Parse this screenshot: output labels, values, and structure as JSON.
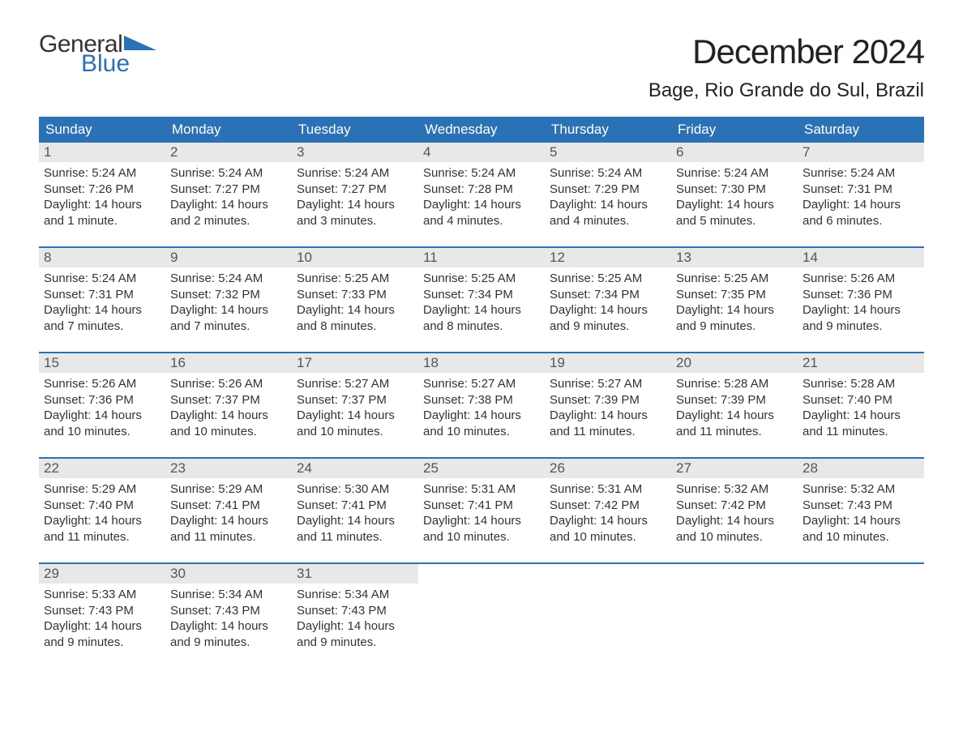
{
  "logo": {
    "general": "General",
    "blue": "Blue",
    "triangle_color": "#2a72b5"
  },
  "title": "December 2024",
  "location": "Bage, Rio Grande do Sul, Brazil",
  "colors": {
    "header_bg": "#2a72b5",
    "header_text": "#ffffff",
    "daynum_bg": "#e8e8e8",
    "daynum_text": "#555555",
    "body_text": "#333333",
    "week_border": "#2a72b5",
    "page_bg": "#ffffff"
  },
  "typography": {
    "title_fontsize": 42,
    "location_fontsize": 24,
    "dow_fontsize": 17,
    "daynum_fontsize": 17,
    "body_fontsize": 15
  },
  "days_of_week": [
    "Sunday",
    "Monday",
    "Tuesday",
    "Wednesday",
    "Thursday",
    "Friday",
    "Saturday"
  ],
  "weeks": [
    [
      {
        "n": "1",
        "sunrise": "Sunrise: 5:24 AM",
        "sunset": "Sunset: 7:26 PM",
        "day1": "Daylight: 14 hours",
        "day2": "and 1 minute."
      },
      {
        "n": "2",
        "sunrise": "Sunrise: 5:24 AM",
        "sunset": "Sunset: 7:27 PM",
        "day1": "Daylight: 14 hours",
        "day2": "and 2 minutes."
      },
      {
        "n": "3",
        "sunrise": "Sunrise: 5:24 AM",
        "sunset": "Sunset: 7:27 PM",
        "day1": "Daylight: 14 hours",
        "day2": "and 3 minutes."
      },
      {
        "n": "4",
        "sunrise": "Sunrise: 5:24 AM",
        "sunset": "Sunset: 7:28 PM",
        "day1": "Daylight: 14 hours",
        "day2": "and 4 minutes."
      },
      {
        "n": "5",
        "sunrise": "Sunrise: 5:24 AM",
        "sunset": "Sunset: 7:29 PM",
        "day1": "Daylight: 14 hours",
        "day2": "and 4 minutes."
      },
      {
        "n": "6",
        "sunrise": "Sunrise: 5:24 AM",
        "sunset": "Sunset: 7:30 PM",
        "day1": "Daylight: 14 hours",
        "day2": "and 5 minutes."
      },
      {
        "n": "7",
        "sunrise": "Sunrise: 5:24 AM",
        "sunset": "Sunset: 7:31 PM",
        "day1": "Daylight: 14 hours",
        "day2": "and 6 minutes."
      }
    ],
    [
      {
        "n": "8",
        "sunrise": "Sunrise: 5:24 AM",
        "sunset": "Sunset: 7:31 PM",
        "day1": "Daylight: 14 hours",
        "day2": "and 7 minutes."
      },
      {
        "n": "9",
        "sunrise": "Sunrise: 5:24 AM",
        "sunset": "Sunset: 7:32 PM",
        "day1": "Daylight: 14 hours",
        "day2": "and 7 minutes."
      },
      {
        "n": "10",
        "sunrise": "Sunrise: 5:25 AM",
        "sunset": "Sunset: 7:33 PM",
        "day1": "Daylight: 14 hours",
        "day2": "and 8 minutes."
      },
      {
        "n": "11",
        "sunrise": "Sunrise: 5:25 AM",
        "sunset": "Sunset: 7:34 PM",
        "day1": "Daylight: 14 hours",
        "day2": "and 8 minutes."
      },
      {
        "n": "12",
        "sunrise": "Sunrise: 5:25 AM",
        "sunset": "Sunset: 7:34 PM",
        "day1": "Daylight: 14 hours",
        "day2": "and 9 minutes."
      },
      {
        "n": "13",
        "sunrise": "Sunrise: 5:25 AM",
        "sunset": "Sunset: 7:35 PM",
        "day1": "Daylight: 14 hours",
        "day2": "and 9 minutes."
      },
      {
        "n": "14",
        "sunrise": "Sunrise: 5:26 AM",
        "sunset": "Sunset: 7:36 PM",
        "day1": "Daylight: 14 hours",
        "day2": "and 9 minutes."
      }
    ],
    [
      {
        "n": "15",
        "sunrise": "Sunrise: 5:26 AM",
        "sunset": "Sunset: 7:36 PM",
        "day1": "Daylight: 14 hours",
        "day2": "and 10 minutes."
      },
      {
        "n": "16",
        "sunrise": "Sunrise: 5:26 AM",
        "sunset": "Sunset: 7:37 PM",
        "day1": "Daylight: 14 hours",
        "day2": "and 10 minutes."
      },
      {
        "n": "17",
        "sunrise": "Sunrise: 5:27 AM",
        "sunset": "Sunset: 7:37 PM",
        "day1": "Daylight: 14 hours",
        "day2": "and 10 minutes."
      },
      {
        "n": "18",
        "sunrise": "Sunrise: 5:27 AM",
        "sunset": "Sunset: 7:38 PM",
        "day1": "Daylight: 14 hours",
        "day2": "and 10 minutes."
      },
      {
        "n": "19",
        "sunrise": "Sunrise: 5:27 AM",
        "sunset": "Sunset: 7:39 PM",
        "day1": "Daylight: 14 hours",
        "day2": "and 11 minutes."
      },
      {
        "n": "20",
        "sunrise": "Sunrise: 5:28 AM",
        "sunset": "Sunset: 7:39 PM",
        "day1": "Daylight: 14 hours",
        "day2": "and 11 minutes."
      },
      {
        "n": "21",
        "sunrise": "Sunrise: 5:28 AM",
        "sunset": "Sunset: 7:40 PM",
        "day1": "Daylight: 14 hours",
        "day2": "and 11 minutes."
      }
    ],
    [
      {
        "n": "22",
        "sunrise": "Sunrise: 5:29 AM",
        "sunset": "Sunset: 7:40 PM",
        "day1": "Daylight: 14 hours",
        "day2": "and 11 minutes."
      },
      {
        "n": "23",
        "sunrise": "Sunrise: 5:29 AM",
        "sunset": "Sunset: 7:41 PM",
        "day1": "Daylight: 14 hours",
        "day2": "and 11 minutes."
      },
      {
        "n": "24",
        "sunrise": "Sunrise: 5:30 AM",
        "sunset": "Sunset: 7:41 PM",
        "day1": "Daylight: 14 hours",
        "day2": "and 11 minutes."
      },
      {
        "n": "25",
        "sunrise": "Sunrise: 5:31 AM",
        "sunset": "Sunset: 7:41 PM",
        "day1": "Daylight: 14 hours",
        "day2": "and 10 minutes."
      },
      {
        "n": "26",
        "sunrise": "Sunrise: 5:31 AM",
        "sunset": "Sunset: 7:42 PM",
        "day1": "Daylight: 14 hours",
        "day2": "and 10 minutes."
      },
      {
        "n": "27",
        "sunrise": "Sunrise: 5:32 AM",
        "sunset": "Sunset: 7:42 PM",
        "day1": "Daylight: 14 hours",
        "day2": "and 10 minutes."
      },
      {
        "n": "28",
        "sunrise": "Sunrise: 5:32 AM",
        "sunset": "Sunset: 7:43 PM",
        "day1": "Daylight: 14 hours",
        "day2": "and 10 minutes."
      }
    ],
    [
      {
        "n": "29",
        "sunrise": "Sunrise: 5:33 AM",
        "sunset": "Sunset: 7:43 PM",
        "day1": "Daylight: 14 hours",
        "day2": "and 9 minutes."
      },
      {
        "n": "30",
        "sunrise": "Sunrise: 5:34 AM",
        "sunset": "Sunset: 7:43 PM",
        "day1": "Daylight: 14 hours",
        "day2": "and 9 minutes."
      },
      {
        "n": "31",
        "sunrise": "Sunrise: 5:34 AM",
        "sunset": "Sunset: 7:43 PM",
        "day1": "Daylight: 14 hours",
        "day2": "and 9 minutes."
      },
      {
        "empty": true
      },
      {
        "empty": true
      },
      {
        "empty": true
      },
      {
        "empty": true
      }
    ]
  ]
}
